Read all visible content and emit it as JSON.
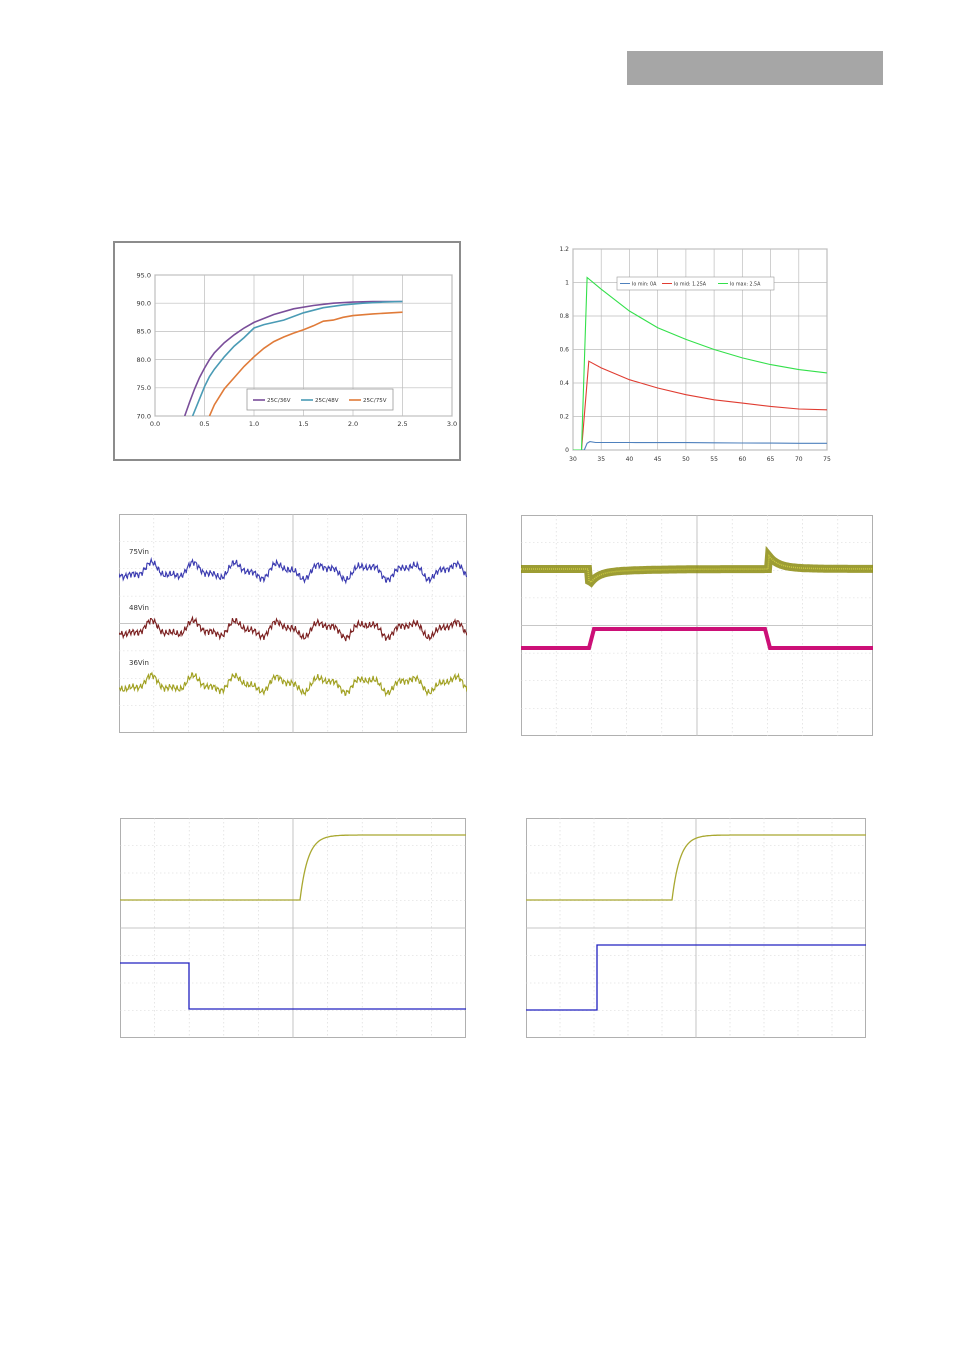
{
  "header": {
    "bar_color": "#a6a6a6"
  },
  "chart_data": [
    {
      "type": "line",
      "name_key": "efficiency",
      "xlim": [
        0.0,
        3.0
      ],
      "ylim": [
        70.0,
        95.0
      ],
      "xticks": [
        "0.0",
        "0.5",
        "1.0",
        "1.5",
        "2.0",
        "2.5",
        "3.0"
      ],
      "yticks": [
        "70.0",
        "75.0",
        "80.0",
        "85.0",
        "90.0",
        "95.0"
      ],
      "grid": true,
      "legend": "bottom-right",
      "series": [
        {
          "name": "25C/36V",
          "color": "#7a4e9a",
          "x": [
            0.3,
            0.35,
            0.4,
            0.45,
            0.5,
            0.55,
            0.6,
            0.7,
            0.8,
            0.9,
            1.0,
            1.2,
            1.4,
            1.6,
            1.8,
            2.0,
            2.2,
            2.5
          ],
          "y": [
            70.0,
            72.5,
            74.8,
            76.8,
            78.5,
            80.0,
            81.2,
            83.0,
            84.4,
            85.6,
            86.6,
            88.0,
            89.0,
            89.6,
            90.0,
            90.2,
            90.3,
            90.3
          ]
        },
        {
          "name": "25C/48V",
          "color": "#4a9bb5",
          "x": [
            0.38,
            0.45,
            0.5,
            0.55,
            0.6,
            0.7,
            0.8,
            0.9,
            1.0,
            1.1,
            1.3,
            1.5,
            1.7,
            1.9,
            2.1,
            2.3,
            2.5
          ],
          "y": [
            70.0,
            73.0,
            75.2,
            77.0,
            78.3,
            80.5,
            82.4,
            83.9,
            85.6,
            86.2,
            87.0,
            88.3,
            89.2,
            89.7,
            90.0,
            90.2,
            90.3
          ]
        },
        {
          "name": "25C/75V",
          "color": "#e07b39",
          "x": [
            0.55,
            0.6,
            0.7,
            0.8,
            0.9,
            1.0,
            1.1,
            1.2,
            1.3,
            1.4,
            1.5,
            1.6,
            1.7,
            1.8,
            1.9,
            2.0,
            2.2,
            2.5
          ],
          "y": [
            70.0,
            72.0,
            74.8,
            76.8,
            78.8,
            80.5,
            82.0,
            83.2,
            84.0,
            84.7,
            85.3,
            86.0,
            86.8,
            87.0,
            87.5,
            87.8,
            88.1,
            88.4
          ]
        }
      ]
    },
    {
      "type": "line",
      "name_key": "load-current",
      "xlim": [
        30,
        75
      ],
      "ylim": [
        0,
        1.2
      ],
      "xticks": [
        "30",
        "35",
        "40",
        "45",
        "50",
        "55",
        "60",
        "65",
        "70",
        "75"
      ],
      "yticks": [
        "0",
        "0.2",
        "0.4",
        "0.6",
        "0.8",
        "1",
        "1.2"
      ],
      "grid": true,
      "legend": "top",
      "series": [
        {
          "name": "Io min: 0A",
          "color": "#4f81bd",
          "x": [
            30,
            32,
            32.5,
            33,
            34,
            35,
            40,
            45,
            50,
            55,
            60,
            65,
            70,
            75
          ],
          "y": [
            0,
            0,
            0.04,
            0.05,
            0.045,
            0.045,
            0.045,
            0.044,
            0.044,
            0.043,
            0.042,
            0.041,
            0.04,
            0.04
          ]
        },
        {
          "name": "Io mid: 1.25A",
          "color": "#e03c31",
          "x": [
            30,
            31.5,
            32.8,
            35,
            40,
            45,
            50,
            55,
            60,
            65,
            70,
            75
          ],
          "y": [
            0,
            0,
            0.53,
            0.49,
            0.42,
            0.37,
            0.33,
            0.3,
            0.28,
            0.26,
            0.245,
            0.24
          ]
        },
        {
          "name": "Io max: 2.5A",
          "color": "#33e04a",
          "x": [
            30,
            31.5,
            32.5,
            35,
            40,
            45,
            50,
            55,
            60,
            65,
            70,
            75
          ],
          "y": [
            0,
            0,
            1.03,
            0.96,
            0.83,
            0.73,
            0.66,
            0.6,
            0.55,
            0.51,
            0.48,
            0.46
          ]
        }
      ]
    },
    {
      "type": "line",
      "name_key": "ripple-scope",
      "series": [
        {
          "name": "75Vin",
          "color": "#3a3ab0"
        },
        {
          "name": "48Vin",
          "color": "#7a1f1f"
        },
        {
          "name": "36Vin",
          "color": "#a0a020"
        }
      ]
    },
    {
      "type": "line",
      "name_key": "transient-scope",
      "series": [
        {
          "color": "#8c8c10"
        },
        {
          "color": "#cc1077"
        }
      ]
    },
    {
      "type": "line",
      "name_key": "startup-scope-1",
      "series": [
        {
          "color": "#a9a830"
        },
        {
          "color": "#2020c0"
        }
      ]
    },
    {
      "type": "line",
      "name_key": "startup-scope-2",
      "series": [
        {
          "color": "#a9a830"
        },
        {
          "color": "#2020c0"
        }
      ]
    }
  ]
}
